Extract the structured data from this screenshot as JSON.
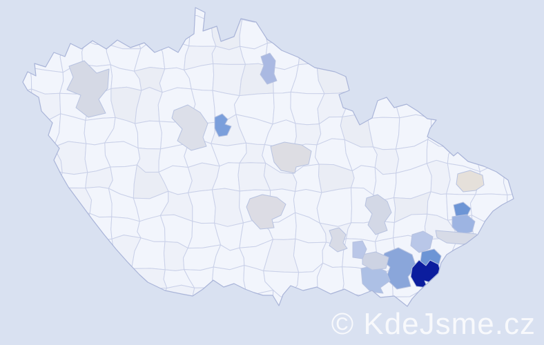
{
  "watermark": {
    "text": "© KdeJsme.cz",
    "color": "#ffffff",
    "opacity": 0.8,
    "font_size": 44
  },
  "map": {
    "background_color": "#d9e1f1",
    "land_color": "#f2f5fc",
    "land_variants": [
      "#f2f5fc",
      "#eef1f9",
      "#eaedf5"
    ],
    "mesh_border_color": "#c9d0e8",
    "outline_color": "#a9b4d8",
    "highlight_border_color": "#b7c2e0",
    "color_scale_low_to_high": [
      "#e5e0da",
      "#d5d9e5",
      "#cdd3e3",
      "#bac7e8",
      "#adc0e5",
      "#9db4e2",
      "#8aa6da",
      "#7b9fdb",
      "#6d95d5",
      "#0b1d9e"
    ],
    "districts": [
      {
        "id": "d1",
        "color": "#d5d9e5"
      },
      {
        "id": "d2",
        "color": "#dcdfe9"
      },
      {
        "id": "d3",
        "color": "#7b9fdb"
      },
      {
        "id": "d4",
        "color": "#aab9e2"
      },
      {
        "id": "d5",
        "color": "#dddde3"
      },
      {
        "id": "d6",
        "color": "#dcdce4"
      },
      {
        "id": "d7",
        "color": "#d3d8e6"
      },
      {
        "id": "d8",
        "color": "#d8dbe6"
      },
      {
        "id": "d9",
        "color": "#e5e0da"
      },
      {
        "id": "d10",
        "color": "#6d95d5"
      },
      {
        "id": "d11",
        "color": "#9db4e2"
      },
      {
        "id": "d12",
        "color": "#d7dbe7"
      },
      {
        "id": "d13",
        "color": "#b9c7e8"
      },
      {
        "id": "d14",
        "color": "#6d95d5"
      },
      {
        "id": "d15",
        "color": "#8aa6da"
      },
      {
        "id": "d16",
        "color": "#0b1d9e"
      },
      {
        "id": "d17",
        "color": "#adc0e5"
      },
      {
        "id": "d18",
        "color": "#cdd3e3"
      },
      {
        "id": "d19",
        "color": "#bac7e8"
      }
    ]
  }
}
